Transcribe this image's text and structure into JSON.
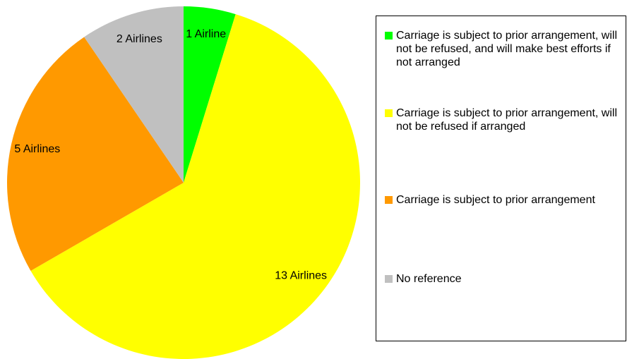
{
  "chart_data": {
    "type": "pie",
    "categories": [
      "Carriage is subject to prior arrangement, will not be refused, and will make best efforts if not arranged",
      "Carriage is subject to prior arrangement, will not be refused if arranged",
      "Carriage is subject to prior arrangement",
      "No reference"
    ],
    "values": [
      1,
      13,
      5,
      2
    ],
    "value_labels": [
      "1 Airline",
      "13 Airlines",
      "5 Airlines",
      "2 Airlines"
    ],
    "colors": [
      "#00ff00",
      "#ffff00",
      "#ff9900",
      "#c0c0c0"
    ],
    "legend": "right"
  }
}
